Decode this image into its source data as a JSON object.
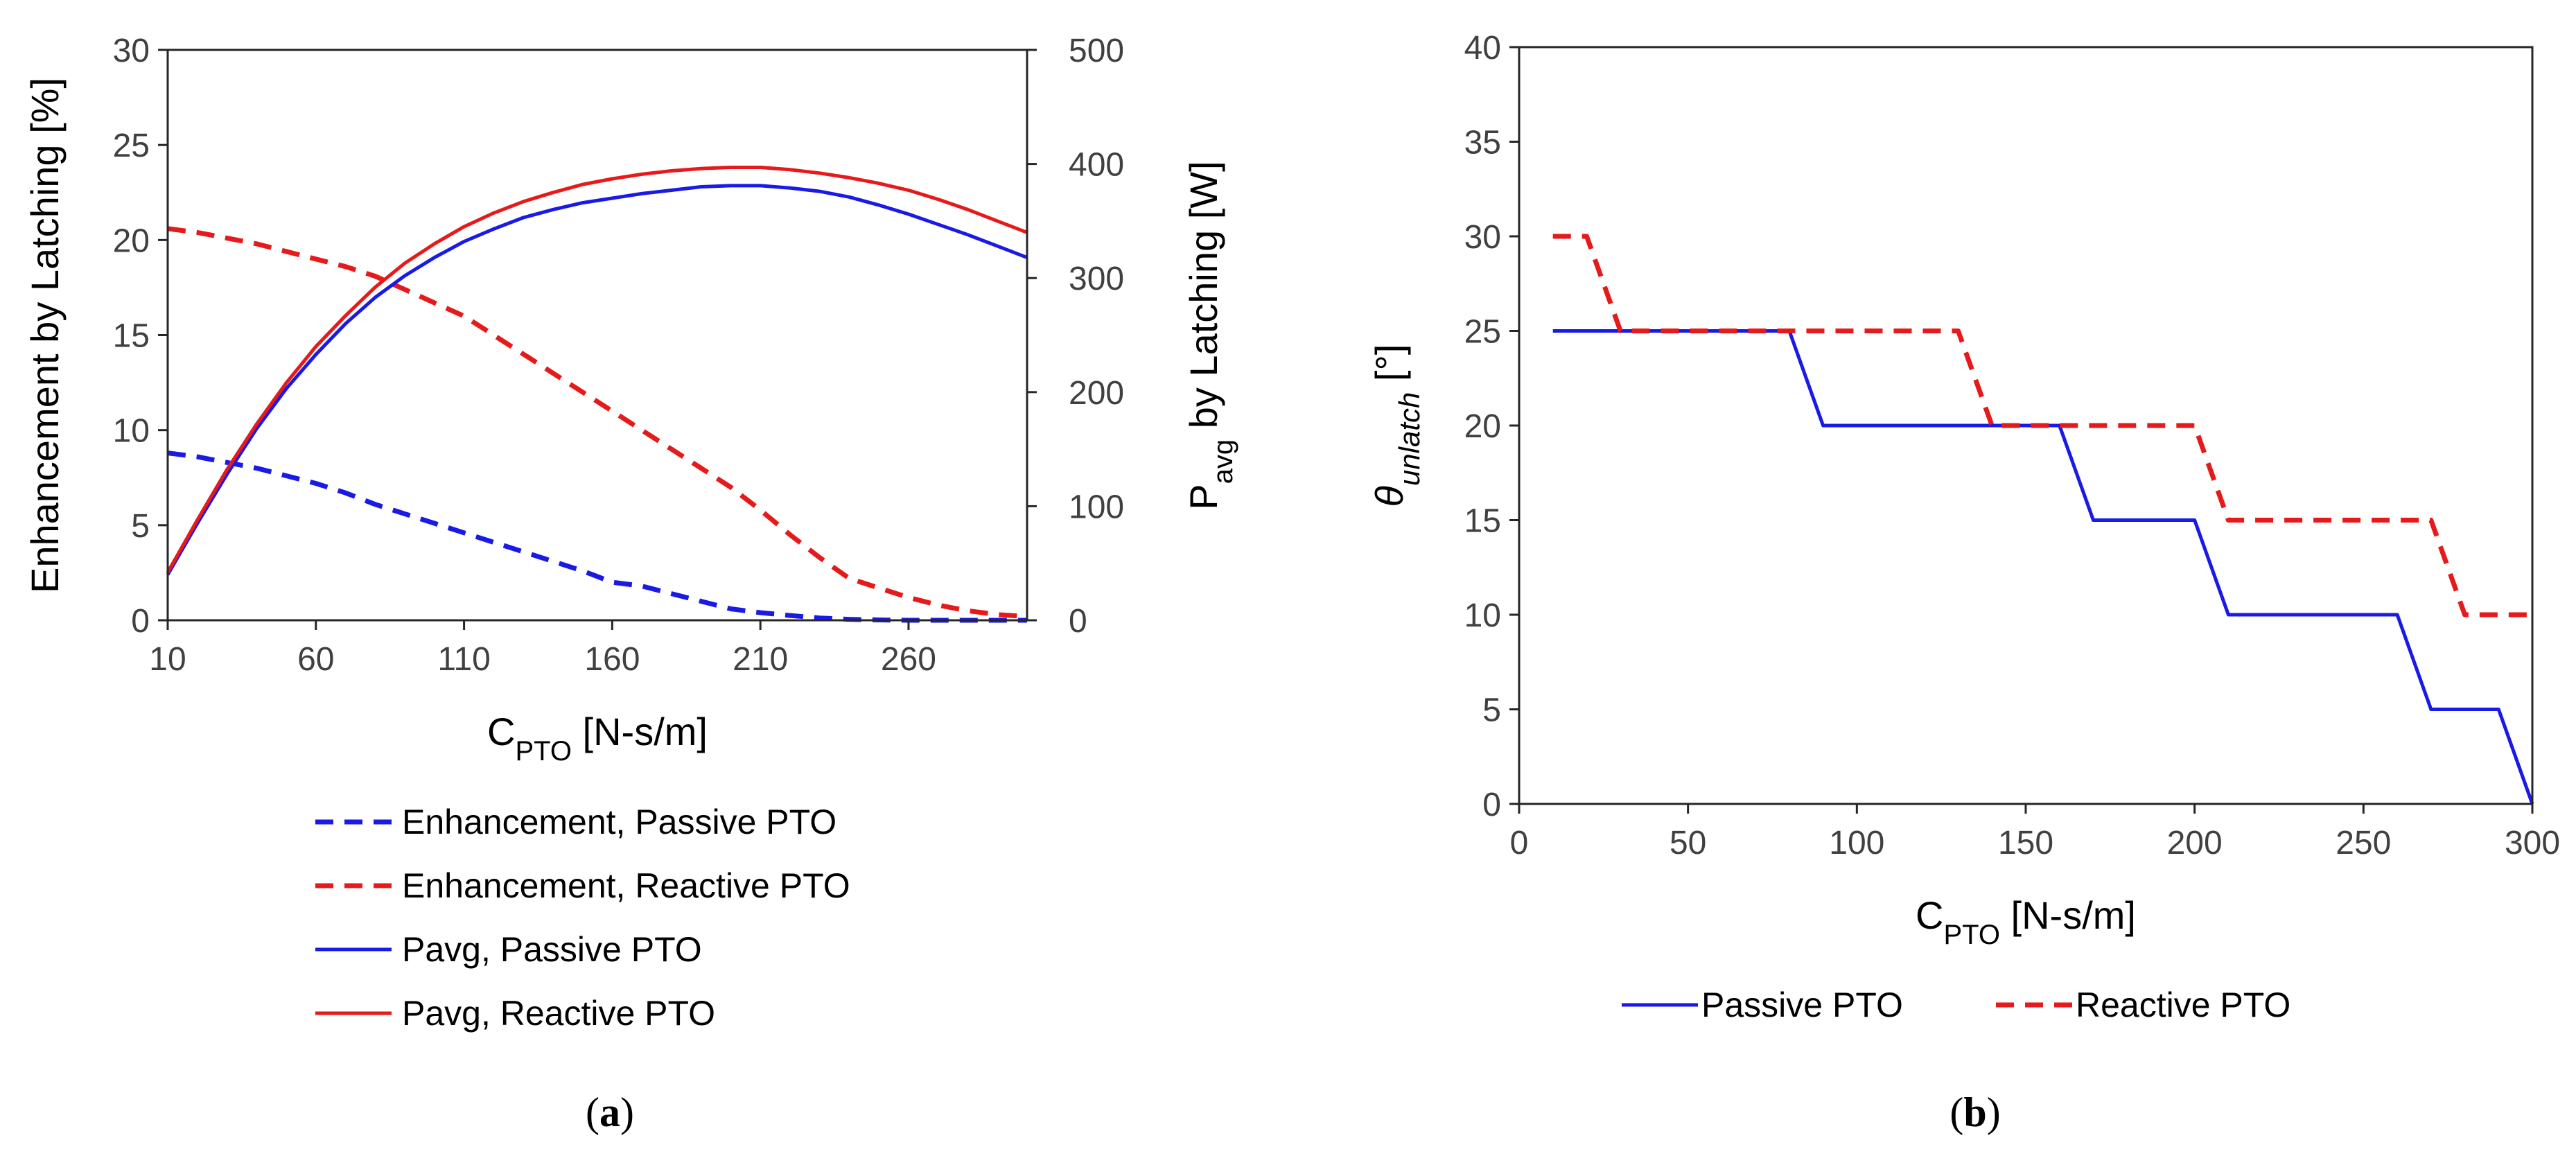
{
  "chart_data": [
    {
      "id": "a",
      "type": "line",
      "panel_label": "a",
      "xlabel": {
        "main": "C",
        "sub": "PTO",
        "rest": " [N-s/m]"
      },
      "ylabel_left": "Enhancement by Latching [%]",
      "ylabel_right": {
        "main": "P",
        "sub": "avg",
        "rest": " by Latching [W]"
      },
      "xlim": [
        10,
        300
      ],
      "ylim_left": [
        0,
        30
      ],
      "ylim_right": [
        0,
        500
      ],
      "xticks": [
        10,
        60,
        110,
        160,
        210,
        260
      ],
      "yticks_left": [
        0,
        5,
        10,
        15,
        20,
        25,
        30
      ],
      "yticks_right": [
        0,
        100,
        200,
        300,
        400,
        500
      ],
      "legend_position": "bottom",
      "series": [
        {
          "name": "Enhancement, Passive PTO",
          "axis": "left",
          "color": "#1a1ae6",
          "style": "dashed",
          "x": [
            10,
            20,
            30,
            40,
            50,
            60,
            70,
            80,
            90,
            100,
            110,
            120,
            130,
            140,
            150,
            160,
            170,
            180,
            190,
            200,
            210,
            220,
            230,
            240,
            250,
            260,
            270,
            280,
            290,
            300
          ],
          "y": [
            8.8,
            8.6,
            8.3,
            8.0,
            7.6,
            7.2,
            6.7,
            6.1,
            5.6,
            5.1,
            4.6,
            4.1,
            3.6,
            3.1,
            2.6,
            2.0,
            1.8,
            1.4,
            1.0,
            0.6,
            0.4,
            0.25,
            0.12,
            0.05,
            0.02,
            0.0,
            0.0,
            0.0,
            0.0,
            0.0
          ]
        },
        {
          "name": "Enhancement, Reactive PTO",
          "axis": "left",
          "color": "#e61a1a",
          "style": "dashed",
          "x": [
            10,
            20,
            30,
            40,
            50,
            60,
            70,
            80,
            90,
            100,
            110,
            120,
            130,
            140,
            150,
            160,
            170,
            180,
            190,
            200,
            210,
            220,
            230,
            240,
            250,
            260,
            270,
            280,
            290,
            300
          ],
          "y": [
            20.6,
            20.4,
            20.1,
            19.8,
            19.4,
            19.0,
            18.6,
            18.1,
            17.4,
            16.7,
            16.0,
            15.0,
            14.0,
            13.0,
            12.0,
            11.0,
            10.0,
            9.0,
            8.0,
            7.0,
            5.8,
            4.5,
            3.3,
            2.2,
            1.7,
            1.2,
            0.8,
            0.5,
            0.3,
            0.2
          ]
        },
        {
          "name": "Pavg, Passive PTO",
          "axis": "right",
          "color": "#1a1ae6",
          "style": "solid",
          "x": [
            10,
            20,
            30,
            40,
            50,
            60,
            70,
            80,
            90,
            100,
            110,
            120,
            130,
            140,
            150,
            160,
            170,
            180,
            190,
            200,
            210,
            220,
            230,
            240,
            250,
            260,
            270,
            280,
            290,
            300
          ],
          "y": [
            40,
            85,
            128,
            168,
            203,
            233,
            260,
            283,
            302,
            318,
            332,
            343,
            353,
            360,
            366,
            370,
            374,
            377,
            380,
            381,
            381,
            379,
            376,
            371,
            364,
            356,
            347,
            338,
            328,
            318
          ]
        },
        {
          "name": "Pavg, Reactive PTO",
          "axis": "right",
          "color": "#e61a1a",
          "style": "solid",
          "x": [
            10,
            20,
            30,
            40,
            50,
            60,
            70,
            80,
            90,
            100,
            110,
            120,
            130,
            140,
            150,
            160,
            170,
            180,
            190,
            200,
            210,
            220,
            230,
            240,
            250,
            260,
            270,
            280,
            290,
            300
          ],
          "y": [
            42,
            88,
            132,
            172,
            208,
            240,
            267,
            292,
            313,
            330,
            345,
            357,
            367,
            375,
            382,
            387,
            391,
            394,
            396,
            397,
            397,
            395,
            392,
            388,
            383,
            377,
            369,
            360,
            350,
            340
          ]
        }
      ]
    },
    {
      "id": "b",
      "type": "line",
      "panel_label": "b",
      "xlabel": {
        "main": "C",
        "sub": "PTO",
        "rest": " [N-s/m]"
      },
      "ylabel": {
        "theta": "θ",
        "sub": "unlatch",
        "rest": " [°]"
      },
      "xlim": [
        0,
        300
      ],
      "ylim": [
        0,
        40
      ],
      "xticks": [
        0,
        50,
        100,
        150,
        200,
        250,
        300
      ],
      "yticks": [
        0,
        5,
        10,
        15,
        20,
        25,
        30,
        35,
        40
      ],
      "legend_position": "bottom",
      "series": [
        {
          "name": "Passive PTO",
          "color": "#1a1ae6",
          "style": "solid",
          "x": [
            10,
            80,
            90,
            160,
            170,
            200,
            210,
            260,
            270,
            290,
            300
          ],
          "y": [
            25,
            25,
            20,
            20,
            15,
            15,
            10,
            10,
            5,
            5,
            0
          ]
        },
        {
          "name": "Reactive PTO",
          "color": "#e61a1a",
          "style": "dashed",
          "x": [
            10,
            20,
            30,
            130,
            140,
            200,
            210,
            270,
            280,
            300
          ],
          "y": [
            30,
            30,
            25,
            25,
            20,
            20,
            15,
            15,
            10,
            10
          ]
        }
      ]
    }
  ]
}
